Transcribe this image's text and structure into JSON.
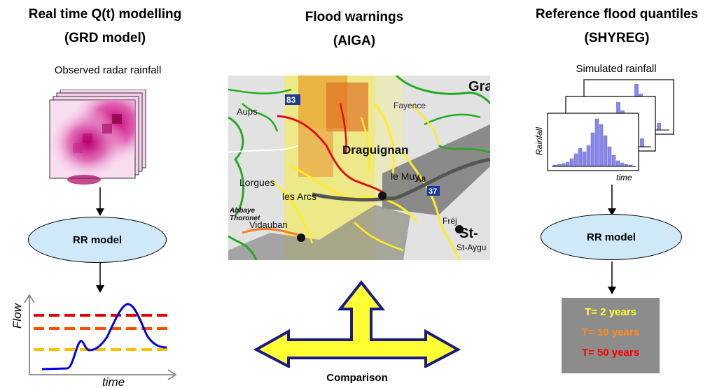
{
  "left": {
    "title_line1": "Real time Q(t) modelling",
    "title_line2": "(GRD model)",
    "caption": "Observed radar rainfall",
    "model_label": "RR model",
    "hydro_ylabel": "Flow",
    "hydro_xlabel": "time"
  },
  "center": {
    "title_line1": "Flood warnings",
    "title_line2": "(AIGA)",
    "map_labels": {
      "aups": "Aups",
      "fayence": "Fayence",
      "draguignan": "Draguignan",
      "lorgues": "Lorgues",
      "les_arcs": "les Arcs",
      "le_muy": "le Muy",
      "vidauban": "Vidauban",
      "st": "St-",
      "st_aygulf": "St-Aygu",
      "gra": "Gra",
      "road_83": "83",
      "road_37": "37",
      "road_a8": "A8",
      "frejus": "Fréj",
      "abbaye": "Abbaye",
      "thoronet": "Thoronet"
    },
    "comparison_label": "Comparison"
  },
  "right": {
    "title_line1": "Reference flood quantiles",
    "title_line2": "(SHYREG)",
    "caption": "Simulated rainfall",
    "rain_ylabel": "Rainfall",
    "rain_xlabel": "time",
    "model_label": "RR model",
    "quantiles": [
      {
        "label": "T= 2 years",
        "color": "#ffff33"
      },
      {
        "label": "T= 10 years",
        "color": "#ff8c1a"
      },
      {
        "label": "T= 50 years",
        "color": "#ff0000"
      }
    ]
  },
  "colors": {
    "ellipse_fill": "#cfe9f8",
    "hydrograph_line": "#0000e6",
    "threshold_red": "#e60000",
    "threshold_orange": "#ff4d00",
    "threshold_yellow": "#ffc000",
    "arrow_fill": "#ffff33",
    "arrow_stroke": "#1a1a80"
  }
}
